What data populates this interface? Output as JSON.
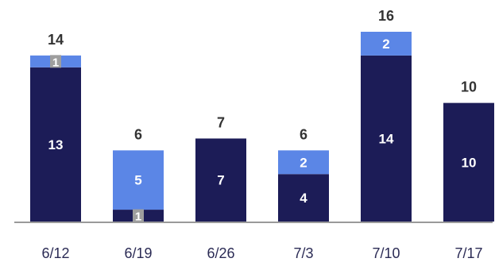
{
  "chart_data": {
    "type": "bar",
    "stacked": true,
    "categories": [
      "6/12",
      "6/19",
      "6/26",
      "7/3",
      "7/10",
      "7/17"
    ],
    "series": [
      {
        "values": [
          13,
          1,
          7,
          4,
          14,
          10
        ],
        "color": "#1c1c57"
      },
      {
        "values": [
          1,
          5,
          0,
          2,
          2,
          0
        ],
        "color": "#5b86e6"
      }
    ],
    "totals": [
      14,
      6,
      7,
      6,
      16,
      10
    ],
    "ylim": [
      0,
      16
    ],
    "grid": false,
    "legend": "none",
    "colors": {
      "axis_line": "#9a9a9a",
      "tick_text": "#2b2b55",
      "total_text": "#333333",
      "segment_text": "#ffffff",
      "small_label_badge": "#9e9e9e"
    }
  }
}
